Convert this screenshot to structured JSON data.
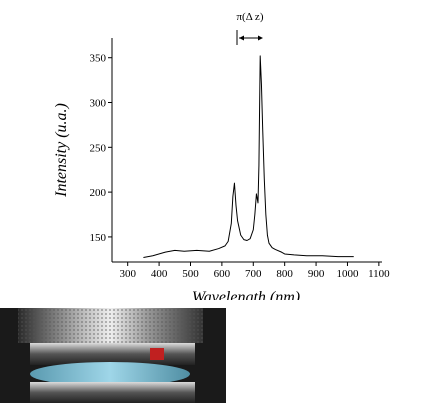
{
  "chart_data": {
    "type": "line",
    "annotation": "π(Δ z)",
    "x_label": "Wavelength (nm)",
    "y_label": "Intensity (u.a.)",
    "x": [
      350,
      380,
      420,
      450,
      480,
      520,
      560,
      590,
      610,
      620,
      630,
      635,
      640,
      645,
      650,
      660,
      670,
      680,
      690,
      700,
      705,
      710,
      715,
      718,
      722,
      726,
      730,
      735,
      740,
      745,
      750,
      760,
      770,
      790,
      800,
      830,
      870,
      920,
      970,
      1020
    ],
    "series": [
      {
        "color": "#000000",
        "values": [
          127,
          129,
          133,
          135,
          134,
          135,
          134,
          137,
          140,
          145,
          165,
          195,
          210,
          185,
          168,
          152,
          147,
          146,
          148,
          158,
          175,
          198,
          188,
          230,
          352,
          320,
          270,
          215,
          175,
          152,
          143,
          138,
          136,
          133,
          131,
          130,
          129,
          129,
          128,
          128
        ]
      }
    ],
    "xlim": [
      250,
      1110
    ],
    "xticks": [
      300,
      400,
      500,
      600,
      700,
      800,
      900,
      1000,
      1100
    ],
    "ylim": [
      122,
      372
    ],
    "yticks": [
      150,
      200,
      250,
      300,
      350
    ]
  }
}
